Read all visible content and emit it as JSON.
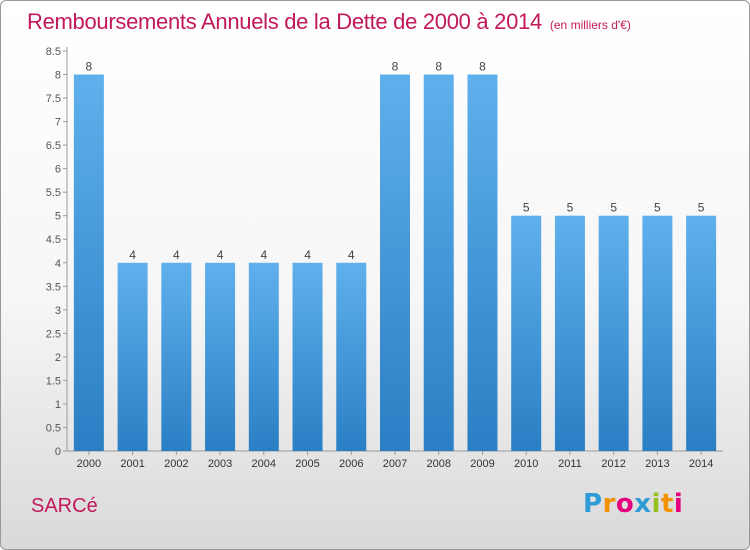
{
  "title": "Remboursements Annuels de la Dette de 2000 à 2014",
  "subtitle": "(en milliers d'€)",
  "commune": "SARCé",
  "logo": {
    "letters": [
      "P",
      "r",
      "o",
      "x",
      "i",
      "t",
      "i"
    ],
    "colors": [
      "#2e9bd6",
      "#f39200",
      "#e6007e",
      "#2e9bd6",
      "#95c11f",
      "#f39200",
      "#e6007e"
    ]
  },
  "colors": {
    "bar_light": "#5fb0ec",
    "bar_dark": "#2a7fc4",
    "title": "#c2185b"
  },
  "chart_data": {
    "type": "bar",
    "categories": [
      "2000",
      "2001",
      "2002",
      "2003",
      "2004",
      "2005",
      "2006",
      "2007",
      "2008",
      "2009",
      "2010",
      "2011",
      "2012",
      "2013",
      "2014"
    ],
    "values": [
      8,
      4,
      4,
      4,
      4,
      4,
      4,
      8,
      8,
      8,
      5,
      5,
      5,
      5,
      5
    ],
    "data_labels": [
      "8",
      "4",
      "4",
      "4",
      "4",
      "4",
      "4",
      "8",
      "8",
      "8",
      "5",
      "5",
      "5",
      "5",
      "5"
    ],
    "y_ticks": [
      "0",
      "0.5",
      "1",
      "1.5",
      "2",
      "2.5",
      "3",
      "3.5",
      "4",
      "4.5",
      "5",
      "5.5",
      "6",
      "6.5",
      "7",
      "7.5",
      "8",
      "8.5"
    ],
    "ylim": [
      0,
      8.5
    ],
    "grid": false,
    "legend": "none"
  }
}
